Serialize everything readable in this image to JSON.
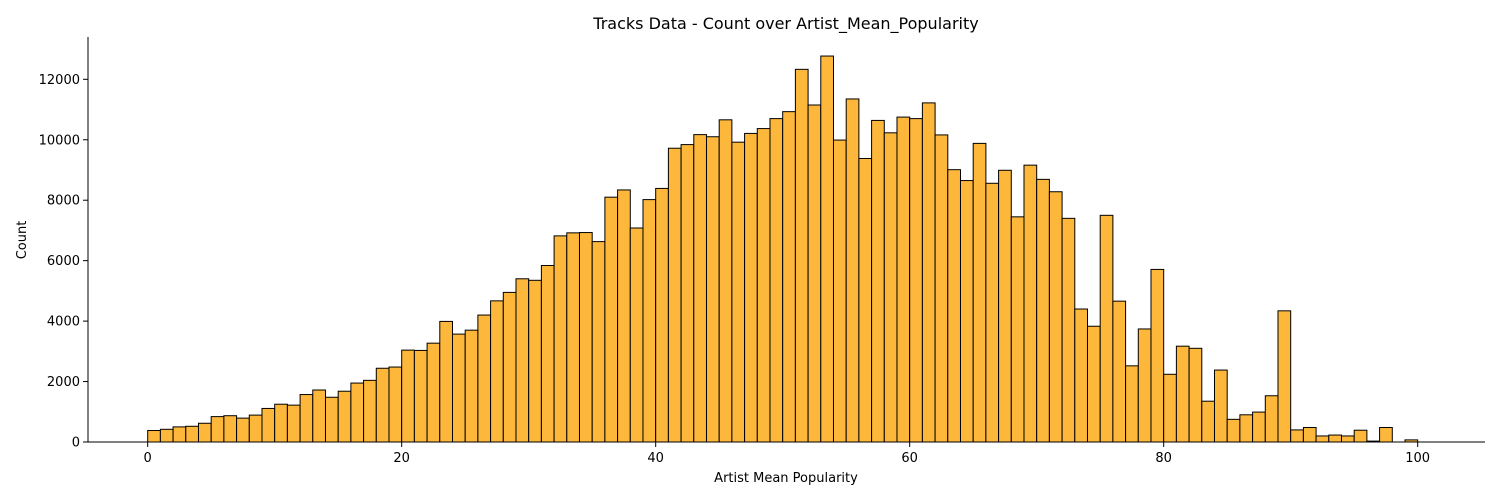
{
  "chart_data": {
    "type": "bar",
    "title": "Tracks Data - Count over Artist_Mean_Popularity",
    "xlabel": "Artist Mean Popularity",
    "ylabel": "Count",
    "xlim": [
      -4.7,
      105.3
    ],
    "ylim": [
      0,
      13400
    ],
    "x_ticks": [
      0,
      20,
      40,
      60,
      80,
      100
    ],
    "y_ticks": [
      0,
      2000,
      4000,
      6000,
      8000,
      10000,
      12000
    ],
    "bin_width": 1,
    "grid": false,
    "legend": "none",
    "bar_color": "#FDB83C",
    "edge_color": "#000000",
    "series": [
      {
        "bins": [
          {
            "x": 0.5,
            "value": 380
          },
          {
            "x": 1.5,
            "value": 420
          },
          {
            "x": 2.5,
            "value": 500
          },
          {
            "x": 3.5,
            "value": 520
          },
          {
            "x": 4.5,
            "value": 620
          },
          {
            "x": 5.5,
            "value": 840
          },
          {
            "x": 6.5,
            "value": 870
          },
          {
            "x": 7.5,
            "value": 790
          },
          {
            "x": 8.5,
            "value": 890
          },
          {
            "x": 9.5,
            "value": 1110
          },
          {
            "x": 10.5,
            "value": 1250
          },
          {
            "x": 11.5,
            "value": 1220
          },
          {
            "x": 12.5,
            "value": 1570
          },
          {
            "x": 13.5,
            "value": 1720
          },
          {
            "x": 14.5,
            "value": 1480
          },
          {
            "x": 15.5,
            "value": 1680
          },
          {
            "x": 16.5,
            "value": 1950
          },
          {
            "x": 17.5,
            "value": 2040
          },
          {
            "x": 18.5,
            "value": 2440
          },
          {
            "x": 19.5,
            "value": 2480
          },
          {
            "x": 20.5,
            "value": 3040
          },
          {
            "x": 21.5,
            "value": 3030
          },
          {
            "x": 22.5,
            "value": 3270
          },
          {
            "x": 23.5,
            "value": 3990
          },
          {
            "x": 24.5,
            "value": 3570
          },
          {
            "x": 25.5,
            "value": 3700
          },
          {
            "x": 26.5,
            "value": 4200
          },
          {
            "x": 27.5,
            "value": 4670
          },
          {
            "x": 28.5,
            "value": 4950
          },
          {
            "x": 29.5,
            "value": 5400
          },
          {
            "x": 30.5,
            "value": 5350
          },
          {
            "x": 31.5,
            "value": 5840
          },
          {
            "x": 32.5,
            "value": 6820
          },
          {
            "x": 33.5,
            "value": 6920
          },
          {
            "x": 34.5,
            "value": 6930
          },
          {
            "x": 35.5,
            "value": 6630
          },
          {
            "x": 36.5,
            "value": 8100
          },
          {
            "x": 37.5,
            "value": 8340
          },
          {
            "x": 38.5,
            "value": 7080
          },
          {
            "x": 39.5,
            "value": 8020
          },
          {
            "x": 40.5,
            "value": 8390
          },
          {
            "x": 41.5,
            "value": 9720
          },
          {
            "x": 42.5,
            "value": 9840
          },
          {
            "x": 43.5,
            "value": 10170
          },
          {
            "x": 44.5,
            "value": 10100
          },
          {
            "x": 45.5,
            "value": 10660
          },
          {
            "x": 46.5,
            "value": 9920
          },
          {
            "x": 47.5,
            "value": 10210
          },
          {
            "x": 48.5,
            "value": 10370
          },
          {
            "x": 49.5,
            "value": 10700
          },
          {
            "x": 50.5,
            "value": 10930
          },
          {
            "x": 51.5,
            "value": 12330
          },
          {
            "x": 52.5,
            "value": 11150
          },
          {
            "x": 53.5,
            "value": 12770
          },
          {
            "x": 54.5,
            "value": 9990
          },
          {
            "x": 55.5,
            "value": 11350
          },
          {
            "x": 56.5,
            "value": 9380
          },
          {
            "x": 57.5,
            "value": 10640
          },
          {
            "x": 58.5,
            "value": 10230
          },
          {
            "x": 59.5,
            "value": 10750
          },
          {
            "x": 60.5,
            "value": 10700
          },
          {
            "x": 61.5,
            "value": 11220
          },
          {
            "x": 62.5,
            "value": 10160
          },
          {
            "x": 63.5,
            "value": 9010
          },
          {
            "x": 64.5,
            "value": 8650
          },
          {
            "x": 65.5,
            "value": 9880
          },
          {
            "x": 66.5,
            "value": 8560
          },
          {
            "x": 67.5,
            "value": 8990
          },
          {
            "x": 68.5,
            "value": 7450
          },
          {
            "x": 69.5,
            "value": 9160
          },
          {
            "x": 70.5,
            "value": 8690
          },
          {
            "x": 71.5,
            "value": 8280
          },
          {
            "x": 72.5,
            "value": 7400
          },
          {
            "x": 73.5,
            "value": 4400
          },
          {
            "x": 74.5,
            "value": 3830
          },
          {
            "x": 75.5,
            "value": 7500
          },
          {
            "x": 76.5,
            "value": 4660
          },
          {
            "x": 77.5,
            "value": 2520
          },
          {
            "x": 78.5,
            "value": 3740
          },
          {
            "x": 79.5,
            "value": 5710
          },
          {
            "x": 80.5,
            "value": 2240
          },
          {
            "x": 81.5,
            "value": 3170
          },
          {
            "x": 82.5,
            "value": 3100
          },
          {
            "x": 83.5,
            "value": 1350
          },
          {
            "x": 84.5,
            "value": 2380
          },
          {
            "x": 85.5,
            "value": 750
          },
          {
            "x": 86.5,
            "value": 900
          },
          {
            "x": 87.5,
            "value": 990
          },
          {
            "x": 88.5,
            "value": 1530
          },
          {
            "x": 89.5,
            "value": 4340
          },
          {
            "x": 90.5,
            "value": 400
          },
          {
            "x": 91.5,
            "value": 480
          },
          {
            "x": 92.5,
            "value": 200
          },
          {
            "x": 93.5,
            "value": 230
          },
          {
            "x": 94.5,
            "value": 200
          },
          {
            "x": 95.5,
            "value": 390
          },
          {
            "x": 96.5,
            "value": 30
          },
          {
            "x": 97.5,
            "value": 480
          },
          {
            "x": 99.5,
            "value": 70
          }
        ]
      }
    ]
  }
}
